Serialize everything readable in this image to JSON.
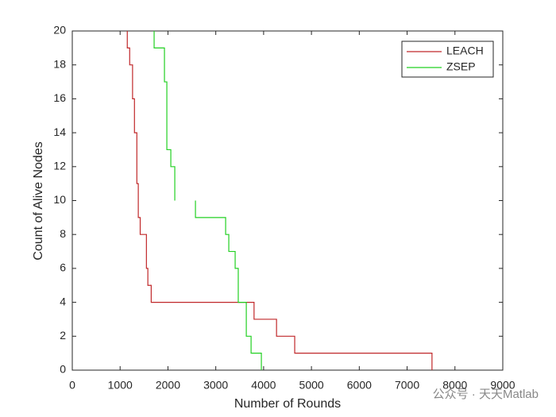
{
  "chart_data": {
    "type": "line",
    "x_label": "Number of Rounds",
    "y_label": "Count of Alive Nodes",
    "watermark": "公众号 · 天天Matlab",
    "xlim": [
      0,
      9000
    ],
    "xticks": [
      0,
      1000,
      2000,
      3000,
      4000,
      5000,
      6000,
      7000,
      8000,
      9000
    ],
    "ylim": [
      0,
      20
    ],
    "yticks": [
      0,
      2,
      4,
      6,
      8,
      10,
      12,
      14,
      16,
      18,
      20
    ],
    "grid": false,
    "legend": "upper right",
    "series": [
      {
        "name": "LEACH",
        "color": "#c0282a",
        "x": [
          1150,
          1150,
          1200,
          1200,
          1260,
          1260,
          1300,
          1300,
          1350,
          1350,
          1380,
          1380,
          1420,
          1420,
          1550,
          1550,
          1580,
          1580,
          1650,
          1650,
          3800,
          3800,
          4270,
          4270,
          4650,
          4650,
          7520,
          7520
        ],
        "values": [
          20,
          19,
          19,
          18,
          18,
          16,
          16,
          14,
          14,
          11,
          11,
          9,
          9,
          8,
          8,
          6,
          6,
          5,
          5,
          4,
          4,
          3,
          3,
          2,
          2,
          1,
          1,
          0
        ]
      },
      {
        "name": "ZSEP",
        "color": "#22d022",
        "x": [
          1711,
          1711,
          1927,
          1927,
          1977,
          1977,
          2060,
          2060,
          2143,
          2143,
          null,
          2575,
          2575,
          3206,
          3206,
          3272,
          3272,
          3405,
          3405,
          3470,
          3470,
          3638,
          3638,
          3738,
          3738,
          3953,
          3953
        ],
        "values": [
          20,
          19,
          19,
          17,
          17,
          13,
          13,
          12,
          12,
          10,
          null,
          10,
          9,
          9,
          8,
          8,
          7,
          7,
          6,
          6,
          4,
          4,
          2,
          2,
          1,
          1,
          0
        ]
      }
    ]
  }
}
